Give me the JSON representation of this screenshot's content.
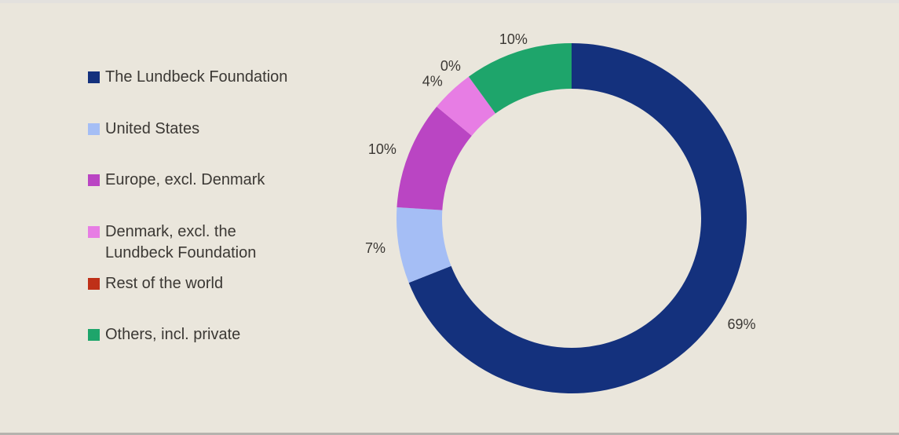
{
  "figure": {
    "background_color": "#eae6dc",
    "text_color": "#3b3834",
    "top_edge_color": "#e3e1de",
    "bottom_edge_color": "#b5b3ae"
  },
  "chart_data": {
    "type": "pie",
    "donut": true,
    "title": "",
    "start_angle_deg": 0,
    "direction": "clockwise",
    "legend_position": "left",
    "total_pct": 100,
    "series": [
      {
        "name": "The Lundbeck Foundation",
        "value": 69,
        "unit": "%",
        "label": "69%",
        "color": "#14317d"
      },
      {
        "name": "United States",
        "value": 7,
        "unit": "%",
        "label": "7%",
        "color": "#a5bef5"
      },
      {
        "name": "Europe, excl. Denmark",
        "value": 10,
        "unit": "%",
        "label": "10%",
        "color": "#ba45c3"
      },
      {
        "name": "Denmark, excl. the Lundbeck Foundation",
        "value": 4,
        "unit": "%",
        "label": "4%",
        "color": "#e77de4"
      },
      {
        "name": "Rest of the world",
        "value": 0,
        "unit": "%",
        "label": "0%",
        "color": "#bf3018"
      },
      {
        "name": "Others, incl. private",
        "value": 10,
        "unit": "%",
        "label": "10%",
        "color": "#1ea56b"
      }
    ]
  }
}
